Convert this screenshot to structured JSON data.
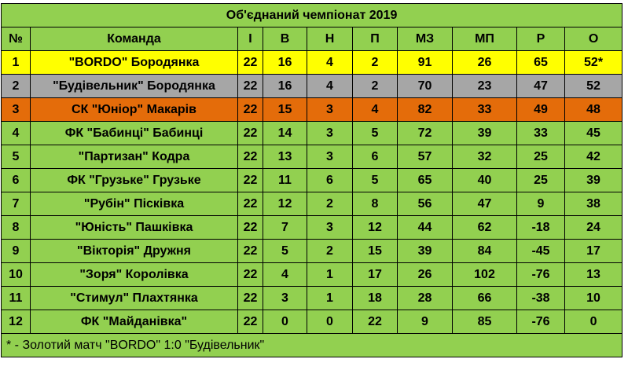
{
  "title": "Об'єднаний чемпіонат 2019",
  "header": [
    "№",
    "Команда",
    "І",
    "В",
    "Н",
    "П",
    "МЗ",
    "МП",
    "Р",
    "О"
  ],
  "rows": [
    [
      1,
      "\"BORDO\" Бородянка",
      22,
      16,
      4,
      2,
      91,
      26,
      65,
      "52*"
    ],
    [
      2,
      "\"Будівельник\" Бородянка",
      22,
      16,
      4,
      2,
      70,
      23,
      47,
      52
    ],
    [
      3,
      "СК \"Юніор\" Макарів",
      22,
      15,
      3,
      4,
      82,
      33,
      49,
      48
    ],
    [
      4,
      "ФК \"Бабинці\" Бабинці",
      22,
      14,
      3,
      5,
      72,
      39,
      33,
      45
    ],
    [
      5,
      "\"Партизан\" Кодра",
      22,
      13,
      3,
      6,
      57,
      32,
      25,
      42
    ],
    [
      6,
      "ФК \"Грузьке\" Грузьке",
      22,
      11,
      6,
      5,
      65,
      40,
      25,
      39
    ],
    [
      7,
      "\"Рубін\" Пісківка",
      22,
      12,
      2,
      8,
      56,
      47,
      9,
      38
    ],
    [
      8,
      "\"Юність\" Пашківка",
      22,
      7,
      3,
      12,
      44,
      62,
      -18,
      24
    ],
    [
      9,
      "\"Вікторія\" Дружня",
      22,
      5,
      2,
      15,
      39,
      84,
      -45,
      17
    ],
    [
      10,
      "\"Зоря\" Королівка",
      22,
      4,
      1,
      17,
      26,
      102,
      -76,
      13
    ],
    [
      11,
      "\"Стимул\" Плахтянка",
      22,
      3,
      1,
      18,
      28,
      66,
      -38,
      10
    ],
    [
      12,
      "ФК \"Майданівка\"",
      22,
      0,
      0,
      22,
      9,
      85,
      -76,
      0
    ]
  ],
  "footnote": "* - Золотий матч \"BORDO\" 1:0 \"Будівельник\""
}
